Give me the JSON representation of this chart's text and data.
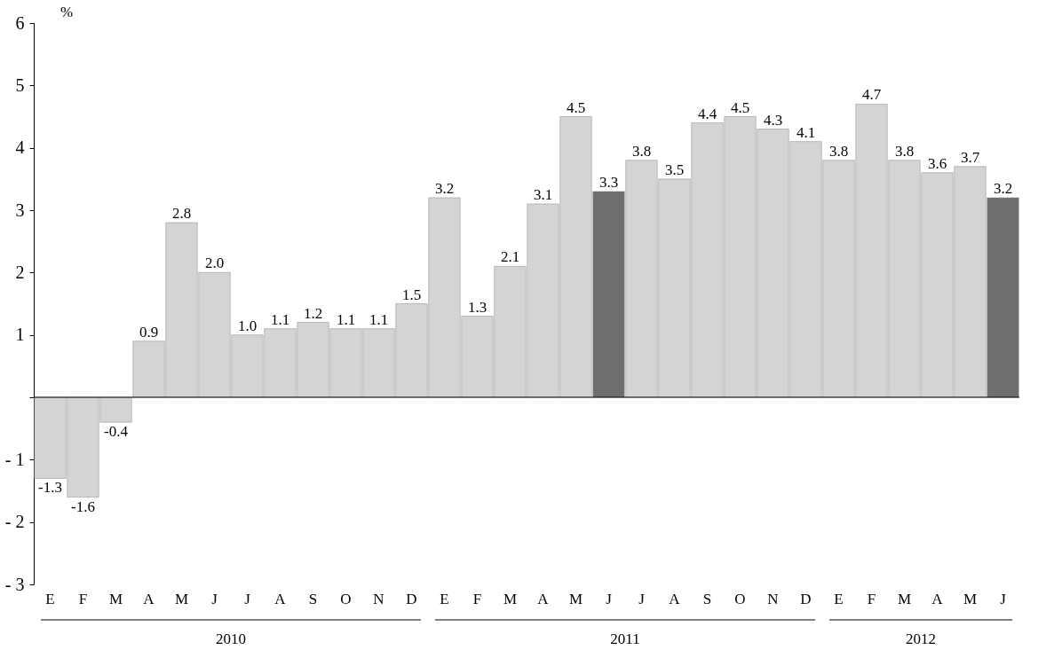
{
  "chart_data": {
    "type": "bar",
    "ylabel": "%",
    "categories": [
      "E",
      "F",
      "M",
      "A",
      "M",
      "J",
      "J",
      "A",
      "S",
      "O",
      "N",
      "D",
      "E",
      "F",
      "M",
      "A",
      "M",
      "J",
      "J",
      "A",
      "S",
      "O",
      "N",
      "D",
      "E",
      "F",
      "M",
      "A",
      "M",
      "J"
    ],
    "values": [
      -1.3,
      -1.6,
      -0.4,
      0.9,
      2.8,
      2.0,
      1.0,
      1.1,
      1.2,
      1.1,
      1.1,
      1.5,
      3.2,
      1.3,
      2.1,
      3.1,
      4.5,
      3.3,
      3.8,
      3.5,
      4.4,
      4.5,
      4.3,
      4.1,
      3.8,
      4.7,
      3.8,
      3.6,
      3.7,
      3.2
    ],
    "colors": [
      "#d4d4d4",
      "#d4d4d4",
      "#d4d4d4",
      "#d4d4d4",
      "#d4d4d4",
      "#d4d4d4",
      "#d4d4d4",
      "#d4d4d4",
      "#d4d4d4",
      "#d4d4d4",
      "#d4d4d4",
      "#d4d4d4",
      "#d4d4d4",
      "#d4d4d4",
      "#d4d4d4",
      "#d4d4d4",
      "#d4d4d4",
      "#6e6e6e",
      "#d4d4d4",
      "#d4d4d4",
      "#d4d4d4",
      "#d4d4d4",
      "#d4d4d4",
      "#d4d4d4",
      "#d4d4d4",
      "#d4d4d4",
      "#d4d4d4",
      "#d4d4d4",
      "#d4d4d4",
      "#6e6e6e"
    ],
    "ylim": [
      -3,
      6
    ],
    "yticks": [
      {
        "value": -3,
        "label": "- 3"
      },
      {
        "value": -2,
        "label": "- 2"
      },
      {
        "value": -1,
        "label": "- 1"
      },
      {
        "value": 0,
        "label": null
      },
      1,
      2,
      3,
      4,
      5,
      6
    ],
    "value_labels": [
      "-1.3",
      "-1.6",
      "-0.4",
      "0.9",
      "2.8",
      "2.0",
      "1.0",
      "1.1",
      "1.2",
      "1.1",
      "1.1",
      "1.5",
      "3.2",
      "1.3",
      "2.1",
      "3.1",
      "4.5",
      "3.3",
      "3.8",
      "3.5",
      "4.4",
      "4.5",
      "4.3",
      "4.1",
      "3.8",
      "4.7",
      "3.8",
      "3.6",
      "3.7",
      "3.2"
    ],
    "annotations": [
      "2010",
      "2011",
      "2012"
    ]
  }
}
